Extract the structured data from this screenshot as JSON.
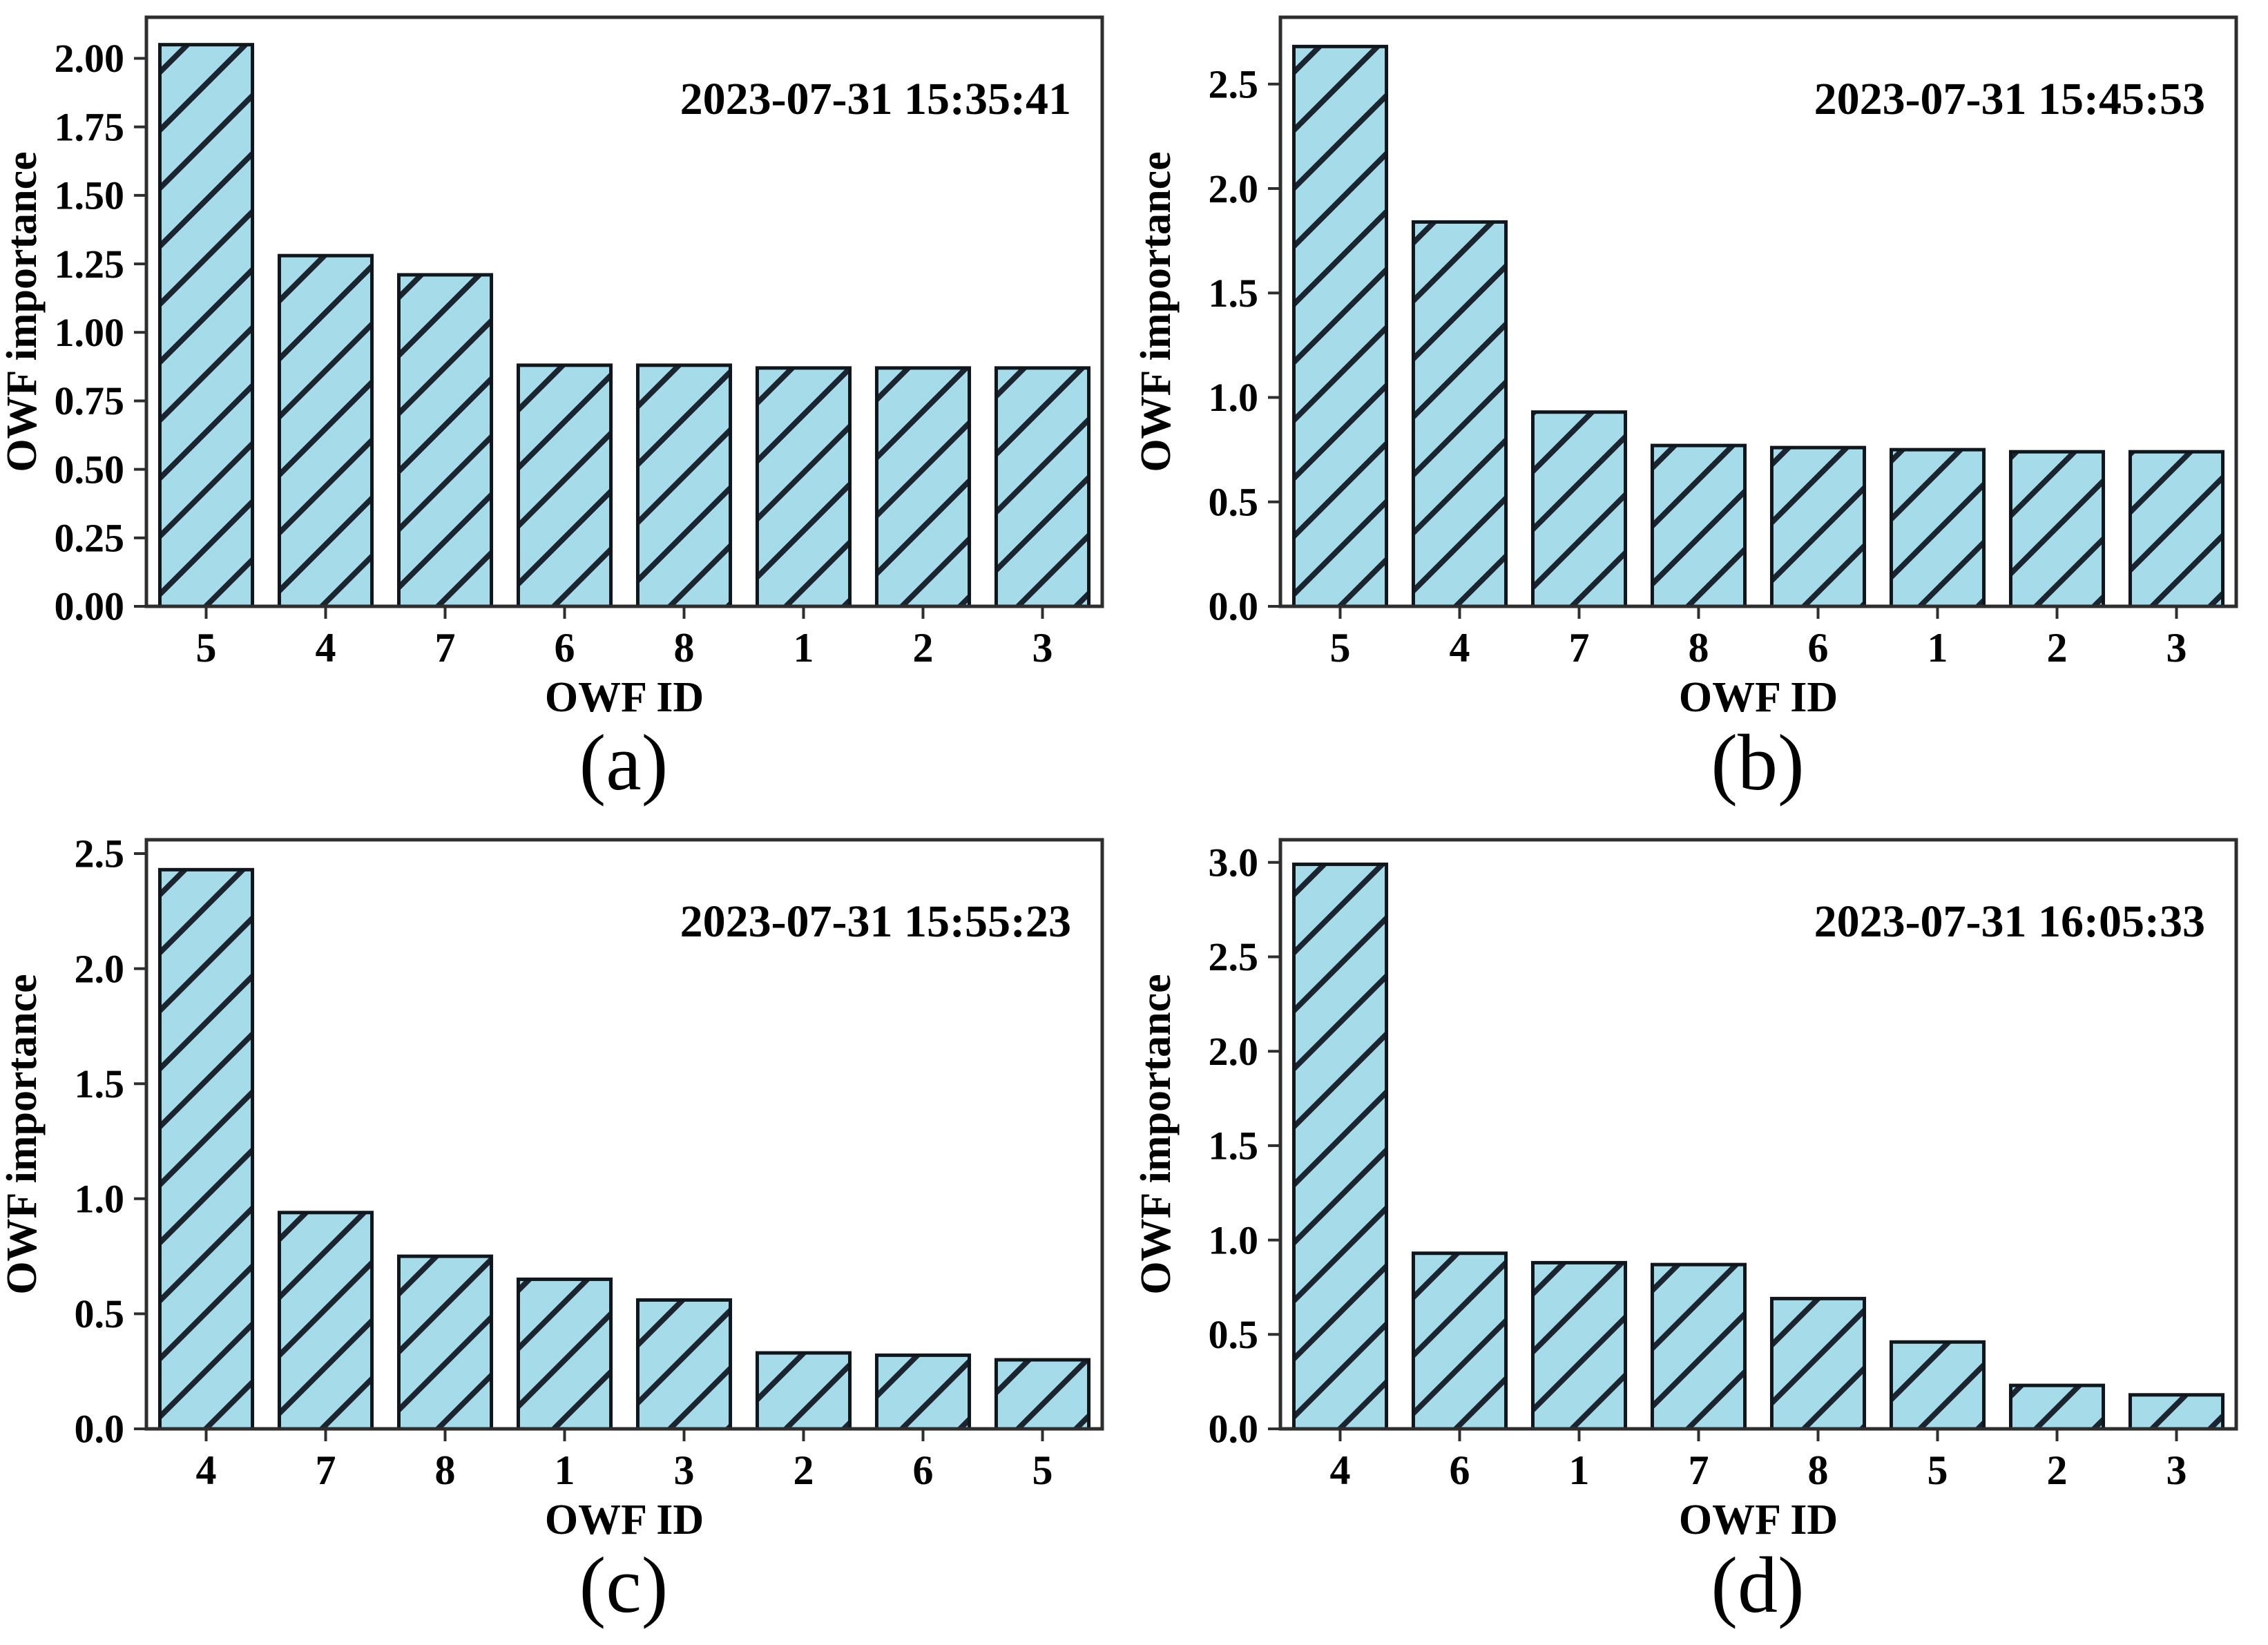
{
  "figure": {
    "background_color": "#ffffff",
    "bar_fill_color": "#a6dbe9",
    "bar_edge_color": "#10171c",
    "hatch_color": "#1b2530",
    "frame_color": "#2e2e2e",
    "hatch_style": "forward-slash-diagonal"
  },
  "chart_data": [
    {
      "type": "bar",
      "panel": "a",
      "caption": "(a)",
      "annotation": "2023-07-31 15:35:41",
      "title": "",
      "xlabel": "OWF ID",
      "ylabel": "OWF importance",
      "categories": [
        "5",
        "4",
        "7",
        "6",
        "8",
        "1",
        "2",
        "3"
      ],
      "values": [
        2.05,
        1.28,
        1.21,
        0.88,
        0.88,
        0.87,
        0.87,
        0.87
      ],
      "ylim": [
        0,
        2.15
      ],
      "yticks": [
        0.0,
        0.25,
        0.5,
        0.75,
        1.0,
        1.25,
        1.5,
        1.75,
        2.0
      ],
      "ytick_labels": [
        "0.00",
        "0.25",
        "0.50",
        "0.75",
        "1.00",
        "1.25",
        "1.50",
        "1.75",
        "2.00"
      ],
      "grid": false,
      "legend": "none"
    },
    {
      "type": "bar",
      "panel": "b",
      "caption": "(b)",
      "annotation": "2023-07-31 15:45:53",
      "title": "",
      "xlabel": "OWF ID",
      "ylabel": "OWF importance",
      "categories": [
        "5",
        "4",
        "7",
        "8",
        "6",
        "1",
        "2",
        "3"
      ],
      "values": [
        2.68,
        1.84,
        0.93,
        0.77,
        0.76,
        0.75,
        0.74,
        0.74
      ],
      "ylim": [
        0,
        2.82
      ],
      "yticks": [
        0.0,
        0.5,
        1.0,
        1.5,
        2.0,
        2.5
      ],
      "ytick_labels": [
        "0.0",
        "0.5",
        "1.0",
        "1.5",
        "2.0",
        "2.5"
      ],
      "grid": false,
      "legend": "none"
    },
    {
      "type": "bar",
      "panel": "c",
      "caption": "(c)",
      "annotation": "2023-07-31 15:55:23",
      "title": "",
      "xlabel": "OWF ID",
      "ylabel": "OWF importance",
      "categories": [
        "4",
        "7",
        "8",
        "1",
        "3",
        "2",
        "6",
        "5"
      ],
      "values": [
        2.43,
        0.94,
        0.75,
        0.65,
        0.56,
        0.33,
        0.32,
        0.3
      ],
      "ylim": [
        0,
        2.56
      ],
      "yticks": [
        0.0,
        0.5,
        1.0,
        1.5,
        2.0,
        2.5
      ],
      "ytick_labels": [
        "0.0",
        "0.5",
        "1.0",
        "1.5",
        "2.0",
        "2.5"
      ],
      "grid": false,
      "legend": "none"
    },
    {
      "type": "bar",
      "panel": "d",
      "caption": "(d)",
      "annotation": "2023-07-31 16:05:33",
      "title": "",
      "xlabel": "OWF ID",
      "ylabel": "OWF importance",
      "categories": [
        "4",
        "6",
        "1",
        "7",
        "8",
        "5",
        "2",
        "3"
      ],
      "values": [
        2.99,
        0.93,
        0.88,
        0.87,
        0.69,
        0.46,
        0.23,
        0.18
      ],
      "ylim": [
        0,
        3.12
      ],
      "yticks": [
        0.0,
        0.5,
        1.0,
        1.5,
        2.0,
        2.5,
        3.0
      ],
      "ytick_labels": [
        "0.0",
        "0.5",
        "1.0",
        "1.5",
        "2.0",
        "2.5",
        "3.0"
      ],
      "grid": false,
      "legend": "none"
    }
  ]
}
